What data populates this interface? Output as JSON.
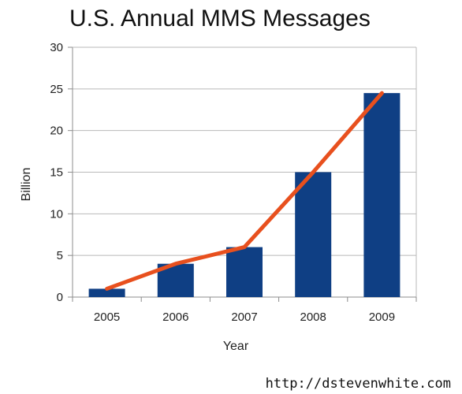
{
  "chart_data": {
    "type": "bar",
    "title": "U.S. Annual MMS Messages",
    "xlabel": "Year",
    "ylabel": "Billion",
    "categories": [
      "2005",
      "2006",
      "2007",
      "2008",
      "2009"
    ],
    "series": [
      {
        "type": "bar",
        "values": [
          1,
          4,
          6,
          15,
          24.5
        ],
        "color": "#0f3f84"
      },
      {
        "type": "line",
        "values": [
          1,
          4,
          6,
          15,
          24.5
        ],
        "color": "#e8501e"
      }
    ],
    "ylim": [
      0,
      30
    ],
    "yticks": [
      "0",
      "5",
      "10",
      "15",
      "20",
      "25",
      "30"
    ],
    "grid": true,
    "legend": "none"
  },
  "credit": "http://dstevenwhite.com",
  "colors": {
    "bar": "#0f3f84",
    "line": "#e8501e",
    "grid": "#b9b9b9",
    "axis": "#8c8c8c"
  }
}
